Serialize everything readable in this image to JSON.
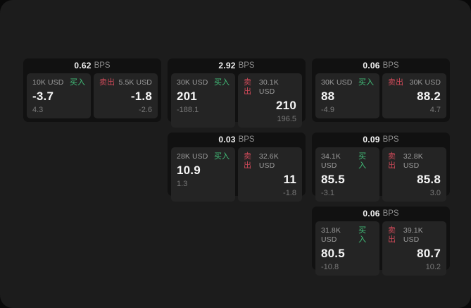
{
  "labels": {
    "bps_suffix": "BPS",
    "buy": "买入",
    "sell": "卖出"
  },
  "colors": {
    "buy": "#42c07a",
    "sell": "#cf4a59",
    "frame_bg": "#1c1c1c",
    "card_bg": "#111111",
    "panel_bg": "#242424",
    "outer_bg": "#090909"
  },
  "cards": [
    {
      "col": 0,
      "row": 0,
      "bps": "0.62",
      "buy": {
        "size": "10K USD",
        "value": "-3.7",
        "sub": "4.3"
      },
      "sell": {
        "size": "5.5K USD",
        "value": "-1.8",
        "sub": "-2.6"
      }
    },
    {
      "col": 1,
      "row": 0,
      "bps": "2.92",
      "buy": {
        "size": "30K USD",
        "value": "201",
        "sub": "-188.1"
      },
      "sell": {
        "size": "30.1K USD",
        "value": "210",
        "sub": "196.5"
      }
    },
    {
      "col": 2,
      "row": 0,
      "bps": "0.06",
      "buy": {
        "size": "30K USD",
        "value": "88",
        "sub": "-4.9"
      },
      "sell": {
        "size": "30K USD",
        "value": "88.2",
        "sub": "4.7"
      }
    },
    {
      "col": 1,
      "row": 1,
      "bps": "0.03",
      "buy": {
        "size": "28K USD",
        "value": "10.9",
        "sub": "1.3"
      },
      "sell": {
        "size": "32.6K USD",
        "value": "11",
        "sub": "-1.8"
      }
    },
    {
      "col": 2,
      "row": 1,
      "bps": "0.09",
      "buy": {
        "size": "34.1K USD",
        "value": "85.5",
        "sub": "-3.1"
      },
      "sell": {
        "size": "32.8K USD",
        "value": "85.8",
        "sub": "3.0"
      }
    },
    {
      "col": 2,
      "row": 2,
      "bps": "0.06",
      "buy": {
        "size": "31.8K USD",
        "value": "80.5",
        "sub": "-10.8"
      },
      "sell": {
        "size": "39.1K USD",
        "value": "80.7",
        "sub": "10.2"
      }
    }
  ]
}
